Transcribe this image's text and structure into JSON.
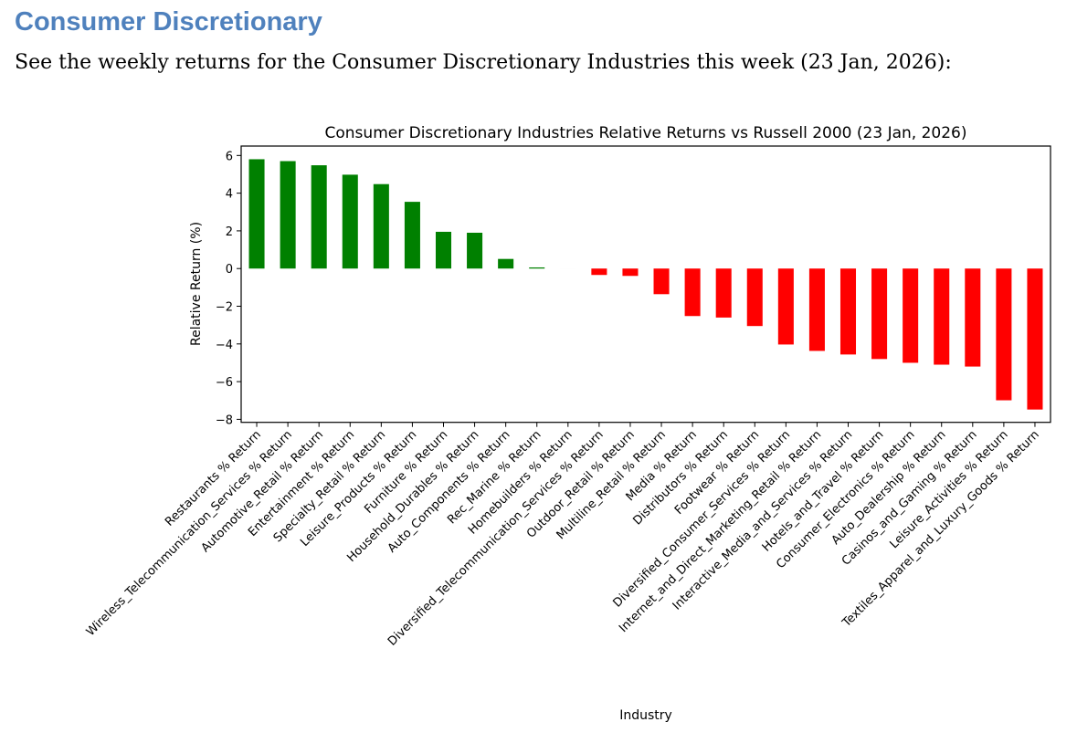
{
  "heading": "Consumer Discretionary",
  "intro": "See the weekly returns for the Consumer Discretionary Industries this week (23 Jan, 2026):",
  "chart_data": {
    "type": "bar",
    "title": "Consumer Discretionary Industries Relative Returns vs Russell 2000 (23 Jan, 2026)",
    "xlabel": "Industry",
    "ylabel": "Relative Return (%)",
    "ylim": [
      -8.16,
      6.5
    ],
    "yticks": [
      6,
      4,
      2,
      0,
      -2,
      -4,
      -6,
      -8
    ],
    "positive_color": "#008000",
    "negative_color": "#ff0000",
    "categories": [
      "Restaurants % Return",
      "Wireless_Telecommunication_Services % Return",
      "Automotive_Retail % Return",
      "Entertainment % Return",
      "Specialty_Retail % Return",
      "Leisure_Products % Return",
      "Furniture % Return",
      "Household_Durables % Return",
      "Auto_Components % Return",
      "Rec_Marine % Return",
      "Homebuilders % Return",
      "Diversified_Telecommunication_Services % Return",
      "Outdoor_Retail % Return",
      "Multiline_Retail % Return",
      "Media % Return",
      "Distributors % Return",
      "Footwear % Return",
      "Diversified_Consumer_Services % Return",
      "Internet_and_Direct_Marketing_Retail % Return",
      "Interactive_Media_and_Services % Return",
      "Hotels_and_Travel % Return",
      "Consumer_Electronics % Return",
      "Auto_Dealership % Return",
      "Casinos_and_Gaming % Return",
      "Leisure_Activities % Return",
      "Textiles_Apparel_and_Luxury_Goods % Return"
    ],
    "values": [
      5.8,
      5.7,
      5.48,
      4.98,
      4.48,
      3.54,
      1.95,
      1.9,
      0.51,
      0.06,
      0.0,
      -0.34,
      -0.39,
      -1.36,
      -2.52,
      -2.6,
      -3.05,
      -4.03,
      -4.37,
      -4.56,
      -4.8,
      -5.0,
      -5.1,
      -5.2,
      -6.99,
      -7.48
    ]
  }
}
